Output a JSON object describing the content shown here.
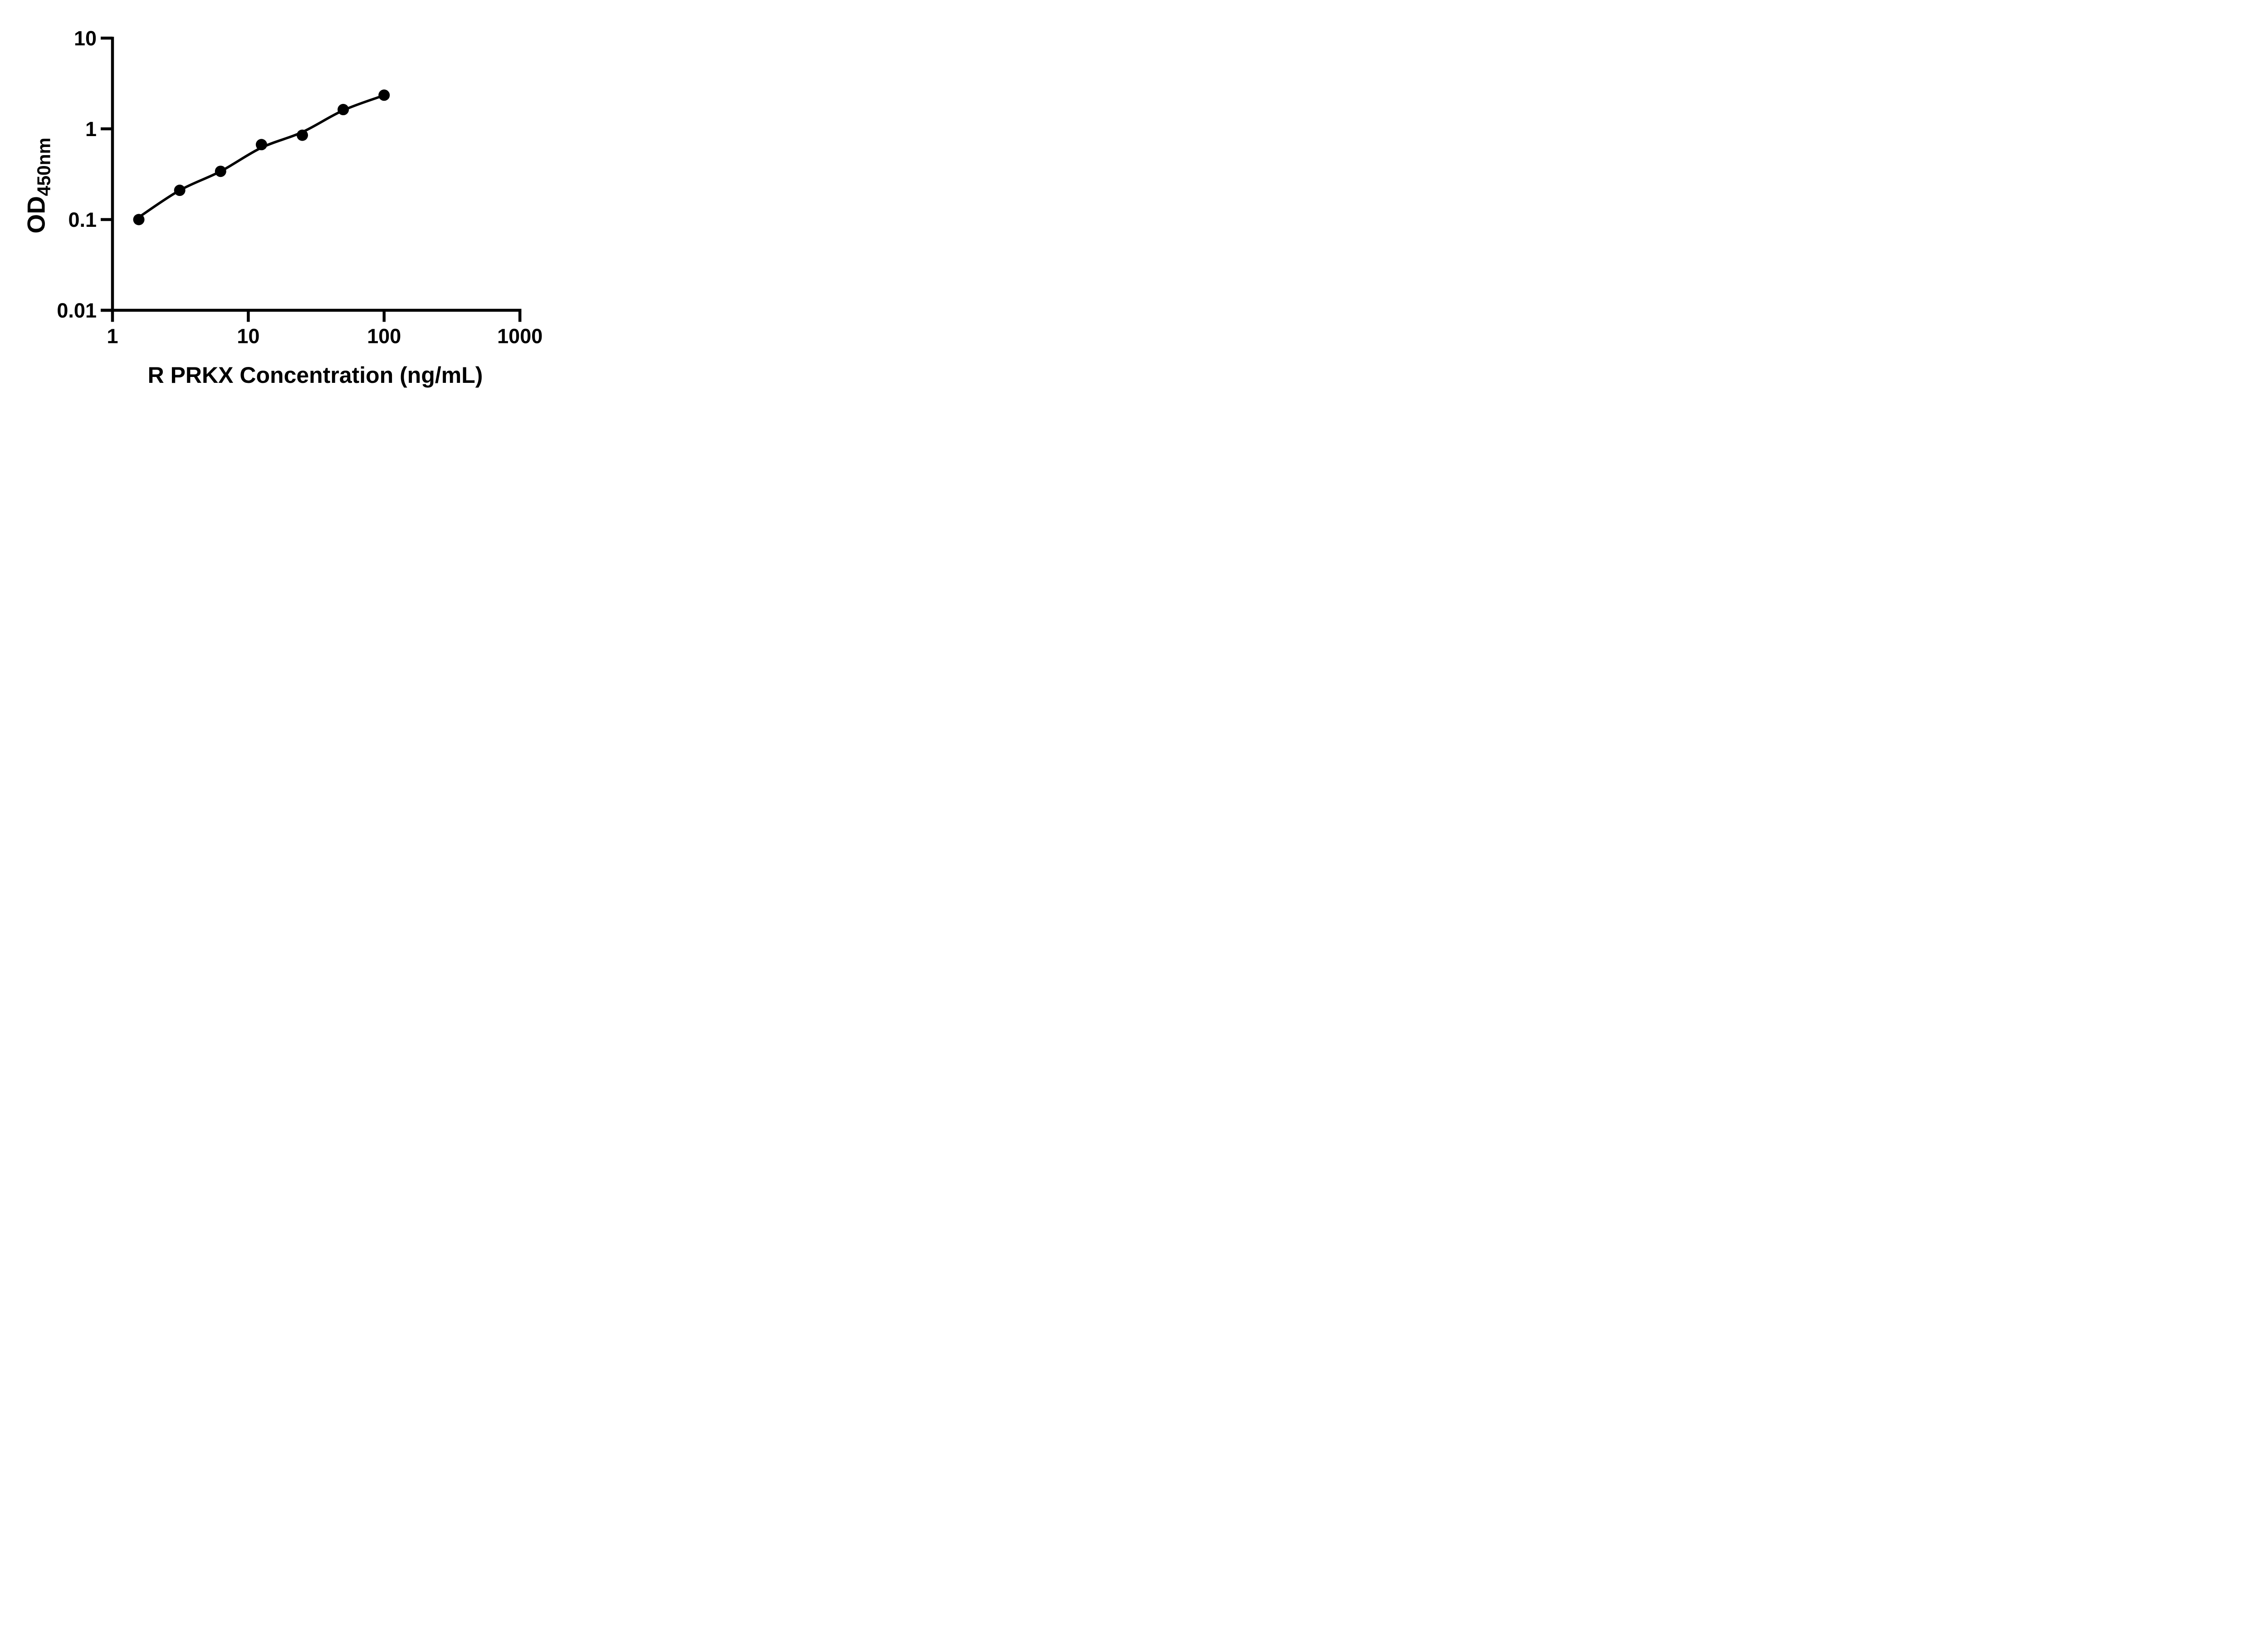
{
  "figure": {
    "background": "#ffffff",
    "ink": "#000000"
  },
  "chart_data": {
    "type": "scatter",
    "title": "",
    "xlabel": "R PRKX Concentration (ng/mL)",
    "ylabel_main": "OD",
    "ylabel_sub": "450nm",
    "x_scale": "log",
    "y_scale": "log",
    "xlim": [
      1,
      1000
    ],
    "ylim": [
      0.01,
      10
    ],
    "x_ticks": [
      1,
      10,
      100,
      1000
    ],
    "y_ticks": [
      10,
      1,
      0.1,
      0.01
    ],
    "grid": false,
    "legend": "none",
    "series": [
      {
        "name": "standard-points",
        "marker": "circle",
        "x": [
          1.5625,
          3.125,
          6.25,
          12.5,
          25,
          50,
          100
        ],
        "y": [
          0.1,
          0.21,
          0.34,
          0.67,
          0.85,
          1.63,
          2.35
        ]
      },
      {
        "name": "fitted-curve",
        "marker": "none",
        "x": [
          1.5625,
          3.125,
          6.25,
          12.5,
          25,
          50,
          100
        ],
        "y": [
          0.106,
          0.21,
          0.34,
          0.62,
          0.92,
          1.6,
          2.34
        ]
      }
    ]
  }
}
